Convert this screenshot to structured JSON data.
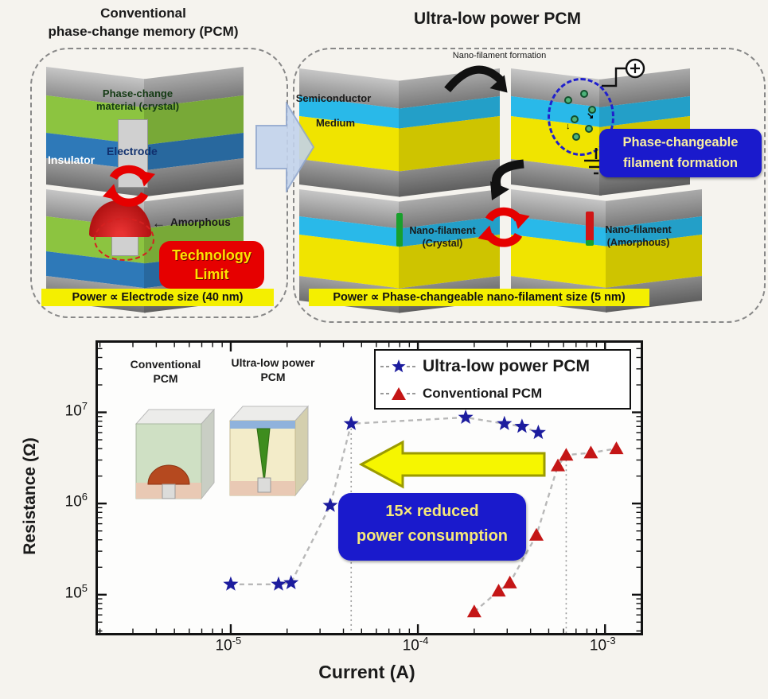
{
  "colors": {
    "layer_green": "#8cc440",
    "layer_blue": "#2e79b8",
    "layer_cyan": "#29b9e9",
    "layer_yellow": "#f0e400",
    "accent_red": "#e60000",
    "box_blue": "#1a1acc",
    "highlight_yellow": "#f4ef00",
    "star_blue": "#1c1c9e",
    "triangle_red": "#c41616"
  },
  "left_panel": {
    "title": [
      "Conventional",
      "phase-change memory (PCM)"
    ],
    "material_label": [
      "Phase-change",
      "material (crystal)"
    ],
    "electrode_label": "Electrode",
    "insulator_label": "Insulator",
    "amorphous_label": "Amorphous",
    "amorphous_arrow": "←",
    "technology_limit": [
      "Technology",
      "Limit"
    ],
    "caption": "Power ∝ Electrode size (40 nm)"
  },
  "right_panel": {
    "title": "Ultra-low power PCM",
    "nano_filament_formation": "Nano-filament formation",
    "semiconductor_label": "Semiconductor",
    "medium_label": "Medium",
    "phase_changeable_box": [
      "Phase-changeable",
      "filament formation"
    ],
    "nano_filament_crystal": [
      "Nano-filament",
      "(Crystal)"
    ],
    "nano_filament_amorphous": [
      "Nano-filament",
      "(Amorphous)"
    ],
    "caption": "Power ∝ Phase-changeable nano-filament size (5 nm)"
  },
  "chart": {
    "inset_left_label": [
      "Conventional",
      "PCM"
    ],
    "inset_right_label": [
      "Ultra-low power",
      "PCM"
    ]
  },
  "chart_data": {
    "type": "scatter",
    "title": "",
    "xlabel": "Current (A)",
    "ylabel": "Resistance (Ω)",
    "x_scale": "log",
    "y_scale": "log",
    "xlim": [
      1.95e-06,
      0.00155
    ],
    "ylim": [
      38000.0,
      58000000.0
    ],
    "x_ticks": [
      1e-05,
      0.0001,
      0.001
    ],
    "x_tick_labels": [
      "10^-5",
      "10^-4",
      "10^-3"
    ],
    "y_ticks": [
      100000.0,
      1000000.0,
      10000000.0
    ],
    "y_tick_labels": [
      "10^5",
      "10^6",
      "10^7"
    ],
    "grid": false,
    "legend_position": "upper right",
    "series": [
      {
        "name": "Ultra-low power PCM",
        "marker": "star",
        "color": "#1c1c9e",
        "line": "dashed-gray",
        "points": [
          [
            1e-05,
            130000.0
          ],
          [
            1.8e-05,
            130000.0
          ],
          [
            2.1e-05,
            135000.0
          ],
          [
            3.4e-05,
            950000.0
          ],
          [
            4.4e-05,
            7500000.0
          ],
          [
            0.00018,
            8800000.0
          ],
          [
            0.00029,
            7500000.0
          ],
          [
            0.00036,
            7000000.0
          ],
          [
            0.00044,
            6000000.0
          ]
        ]
      },
      {
        "name": "Conventional PCM",
        "marker": "triangle",
        "color": "#c41616",
        "line": "dashed-gray",
        "points": [
          [
            0.0002,
            65000.0
          ],
          [
            0.00027,
            110000.0
          ],
          [
            0.00031,
            135000.0
          ],
          [
            0.00043,
            450000.0
          ],
          [
            0.00056,
            2600000.0
          ],
          [
            0.00062,
            3400000.0
          ],
          [
            0.00084,
            3600000.0
          ],
          [
            0.00115,
            4000000.0
          ]
        ]
      }
    ],
    "reference_lines": [
      {
        "x": 4.4e-05,
        "y_top": 7500000.0
      },
      {
        "x": 0.00062,
        "y_top": 3400000.0
      }
    ],
    "annotations": {
      "box": [
        "15× reduced",
        "power consumption"
      ],
      "arrow": "yellow-left-arrow"
    }
  }
}
